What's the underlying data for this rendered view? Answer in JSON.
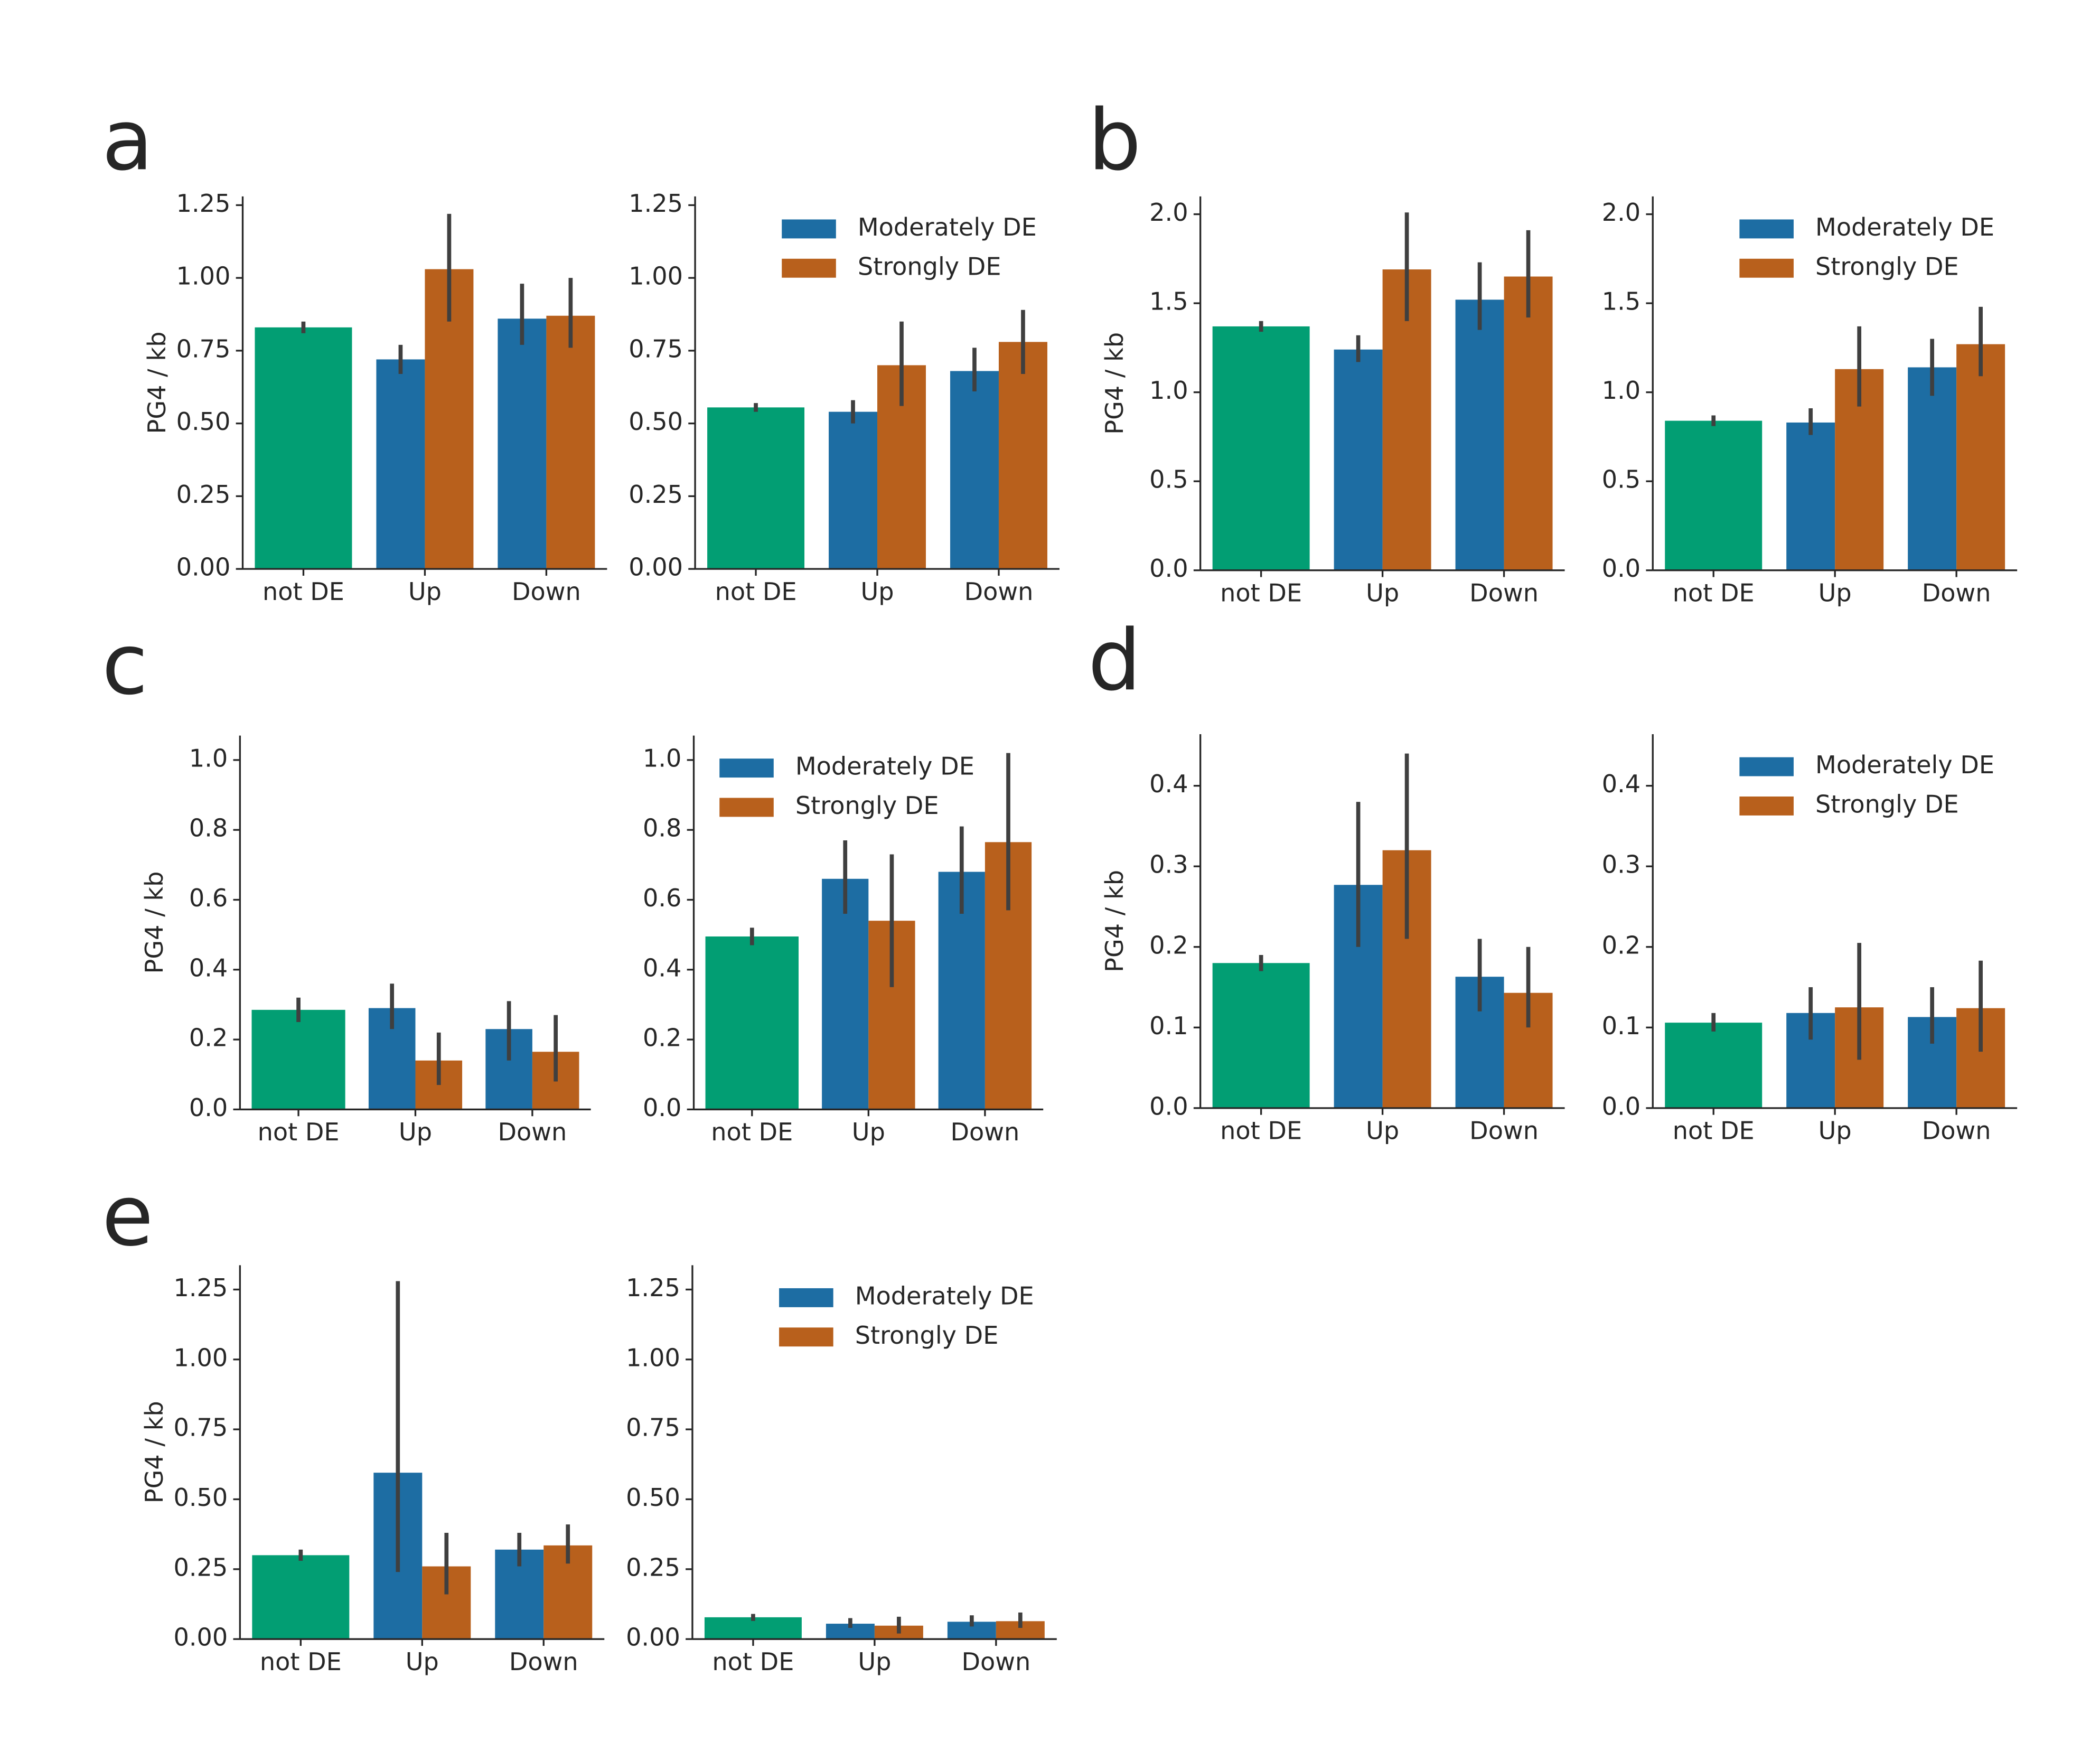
{
  "chart_data": [
    {
      "type": "bar",
      "panel": "a",
      "ylabel": "PG4 / kb",
      "legend": false,
      "categories": [
        "not DE",
        "Up",
        "Down"
      ],
      "series": [
        {
          "color": "#029e73",
          "values": [
            0.83,
            null,
            null
          ],
          "errors": [
            [
              0.81,
              0.85
            ],
            null,
            null
          ]
        },
        {
          "name": "Moderately DE",
          "color": "#1d6da3",
          "values": [
            null,
            0.72,
            0.86
          ],
          "errors": [
            null,
            [
              0.67,
              0.77
            ],
            [
              0.77,
              0.98
            ]
          ]
        },
        {
          "name": "Strongly DE",
          "color": "#b8601c",
          "values": [
            null,
            1.03,
            0.87
          ],
          "errors": [
            null,
            [
              0.85,
              1.22
            ],
            [
              0.76,
              1.0
            ]
          ]
        }
      ],
      "ylim": [
        0,
        1.28
      ],
      "yticks": [
        {
          "value": 0,
          "label": "0.00"
        },
        0.25,
        {
          "value": 0.5,
          "label": "0.50"
        },
        0.75,
        {
          "value": 1,
          "label": "1.00"
        },
        1.25
      ]
    },
    {
      "type": "bar",
      "legend": true,
      "legend_loc": "upper right",
      "categories": [
        "not DE",
        "Up",
        "Down"
      ],
      "series": [
        {
          "color": "#029e73",
          "values": [
            0.555,
            null,
            null
          ],
          "errors": [
            [
              0.54,
              0.57
            ],
            null,
            null
          ]
        },
        {
          "name": "Moderately DE",
          "color": "#1d6da3",
          "values": [
            null,
            0.54,
            0.68
          ],
          "errors": [
            null,
            [
              0.5,
              0.58
            ],
            [
              0.61,
              0.76
            ]
          ]
        },
        {
          "name": "Strongly DE",
          "color": "#b8601c",
          "values": [
            null,
            0.7,
            0.78
          ],
          "errors": [
            null,
            [
              0.56,
              0.85
            ],
            [
              0.67,
              0.89
            ]
          ]
        }
      ],
      "ylim": [
        0,
        1.28
      ],
      "yticks": [
        {
          "value": 0,
          "label": "0.00"
        },
        0.25,
        {
          "value": 0.5,
          "label": "0.50"
        },
        0.75,
        {
          "value": 1,
          "label": "1.00"
        },
        1.25
      ]
    },
    {
      "type": "bar",
      "panel": "b",
      "ylabel": "PG4 / kb",
      "legend": false,
      "categories": [
        "not DE",
        "Up",
        "Down"
      ],
      "series": [
        {
          "color": "#029e73",
          "values": [
            1.37,
            null,
            null
          ],
          "errors": [
            [
              1.34,
              1.4
            ],
            null,
            null
          ]
        },
        {
          "name": "Moderately DE",
          "color": "#1d6da3",
          "values": [
            null,
            1.24,
            1.52
          ],
          "errors": [
            null,
            [
              1.17,
              1.32
            ],
            [
              1.35,
              1.73
            ]
          ]
        },
        {
          "name": "Strongly DE",
          "color": "#b8601c",
          "values": [
            null,
            1.69,
            1.65
          ],
          "errors": [
            null,
            [
              1.4,
              2.01
            ],
            [
              1.42,
              1.91
            ]
          ]
        }
      ],
      "ylim": [
        0,
        2.1
      ],
      "yticks": [
        {
          "value": 0,
          "label": "0.0"
        },
        0.5,
        {
          "value": 1,
          "label": "1.0"
        },
        1.5,
        {
          "value": 2,
          "label": "2.0"
        }
      ]
    },
    {
      "type": "bar",
      "legend": true,
      "legend_loc": "upper right",
      "categories": [
        "not DE",
        "Up",
        "Down"
      ],
      "series": [
        {
          "color": "#029e73",
          "values": [
            0.84,
            null,
            null
          ],
          "errors": [
            [
              0.81,
              0.87
            ],
            null,
            null
          ]
        },
        {
          "name": "Moderately DE",
          "color": "#1d6da3",
          "values": [
            null,
            0.83,
            1.14
          ],
          "errors": [
            null,
            [
              0.76,
              0.91
            ],
            [
              0.98,
              1.3
            ]
          ]
        },
        {
          "name": "Strongly DE",
          "color": "#b8601c",
          "values": [
            null,
            1.13,
            1.27
          ],
          "errors": [
            null,
            [
              0.92,
              1.37
            ],
            [
              1.09,
              1.48
            ]
          ]
        }
      ],
      "ylim": [
        0,
        2.1
      ],
      "yticks": [
        {
          "value": 0,
          "label": "0.0"
        },
        0.5,
        {
          "value": 1,
          "label": "1.0"
        },
        1.5,
        {
          "value": 2,
          "label": "2.0"
        }
      ]
    },
    {
      "type": "bar",
      "panel": "c",
      "ylabel": "PG4 / kb",
      "legend": false,
      "categories": [
        "not DE",
        "Up",
        "Down"
      ],
      "series": [
        {
          "color": "#029e73",
          "values": [
            0.285,
            null,
            null
          ],
          "errors": [
            [
              0.25,
              0.32
            ],
            null,
            null
          ]
        },
        {
          "name": "Moderately DE",
          "color": "#1d6da3",
          "values": [
            null,
            0.29,
            0.23
          ],
          "errors": [
            null,
            [
              0.23,
              0.36
            ],
            [
              0.14,
              0.31
            ]
          ]
        },
        {
          "name": "Strongly DE",
          "color": "#b8601c",
          "values": [
            null,
            0.14,
            0.165
          ],
          "errors": [
            null,
            [
              0.07,
              0.22
            ],
            [
              0.08,
              0.27
            ]
          ]
        }
      ],
      "ylim": [
        0,
        1.07
      ],
      "yticks": [
        {
          "value": 0,
          "label": "0.0"
        },
        0.2,
        0.4,
        0.6,
        0.8,
        {
          "value": 1,
          "label": "1.0"
        }
      ]
    },
    {
      "type": "bar",
      "legend": true,
      "legend_loc": "upper left",
      "categories": [
        "not DE",
        "Up",
        "Down"
      ],
      "series": [
        {
          "color": "#029e73",
          "values": [
            0.495,
            null,
            null
          ],
          "errors": [
            [
              0.47,
              0.52
            ],
            null,
            null
          ]
        },
        {
          "name": "Moderately DE",
          "color": "#1d6da3",
          "values": [
            null,
            0.66,
            0.68
          ],
          "errors": [
            null,
            [
              0.56,
              0.77
            ],
            [
              0.56,
              0.81
            ]
          ]
        },
        {
          "name": "Strongly DE",
          "color": "#b8601c",
          "values": [
            null,
            0.54,
            0.765
          ],
          "errors": [
            null,
            [
              0.35,
              0.73
            ],
            [
              0.57,
              1.02
            ]
          ]
        }
      ],
      "ylim": [
        0,
        1.07
      ],
      "yticks": [
        {
          "value": 0,
          "label": "0.0"
        },
        0.2,
        0.4,
        0.6,
        0.8,
        {
          "value": 1,
          "label": "1.0"
        }
      ]
    },
    {
      "type": "bar",
      "panel": "d",
      "ylabel": "PG4 / kb",
      "legend": false,
      "categories": [
        "not DE",
        "Up",
        "Down"
      ],
      "series": [
        {
          "color": "#029e73",
          "values": [
            0.18,
            null,
            null
          ],
          "errors": [
            [
              0.17,
              0.19
            ],
            null,
            null
          ]
        },
        {
          "name": "Moderately DE",
          "color": "#1d6da3",
          "values": [
            null,
            0.277,
            0.163
          ],
          "errors": [
            null,
            [
              0.2,
              0.38
            ],
            [
              0.12,
              0.21
            ]
          ]
        },
        {
          "name": "Strongly DE",
          "color": "#b8601c",
          "values": [
            null,
            0.32,
            0.143
          ],
          "errors": [
            null,
            [
              0.21,
              0.44
            ],
            [
              0.1,
              0.2
            ]
          ]
        }
      ],
      "ylim": [
        0,
        0.464
      ],
      "yticks": [
        {
          "value": 0,
          "label": "0.0"
        },
        0.1,
        0.2,
        0.3,
        0.4
      ]
    },
    {
      "type": "bar",
      "legend": true,
      "legend_loc": "upper right",
      "categories": [
        "not DE",
        "Up",
        "Down"
      ],
      "series": [
        {
          "color": "#029e73",
          "values": [
            0.106,
            null,
            null
          ],
          "errors": [
            [
              0.095,
              0.118
            ],
            null,
            null
          ]
        },
        {
          "name": "Moderately DE",
          "color": "#1d6da3",
          "values": [
            null,
            0.118,
            0.113
          ],
          "errors": [
            null,
            [
              0.085,
              0.15
            ],
            [
              0.08,
              0.15
            ]
          ]
        },
        {
          "name": "Strongly DE",
          "color": "#b8601c",
          "values": [
            null,
            0.125,
            0.124
          ],
          "errors": [
            null,
            [
              0.06,
              0.205
            ],
            [
              0.07,
              0.183
            ]
          ]
        }
      ],
      "ylim": [
        0,
        0.464
      ],
      "yticks": [
        {
          "value": 0,
          "label": "0.0"
        },
        0.1,
        0.2,
        0.3,
        0.4
      ]
    },
    {
      "type": "bar",
      "panel": "e",
      "ylabel": "PG4 / kb",
      "legend": false,
      "categories": [
        "not DE",
        "Up",
        "Down"
      ],
      "series": [
        {
          "color": "#029e73",
          "values": [
            0.3,
            null,
            null
          ],
          "errors": [
            [
              0.28,
              0.32
            ],
            null,
            null
          ]
        },
        {
          "name": "Moderately DE",
          "color": "#1d6da3",
          "values": [
            null,
            0.595,
            0.32
          ],
          "errors": [
            null,
            [
              0.24,
              1.28
            ],
            [
              0.26,
              0.38
            ]
          ]
        },
        {
          "name": "Strongly DE",
          "color": "#b8601c",
          "values": [
            null,
            0.26,
            0.335
          ],
          "errors": [
            null,
            [
              0.16,
              0.38
            ],
            [
              0.27,
              0.41
            ]
          ]
        }
      ],
      "ylim": [
        0,
        1.337
      ],
      "yticks": [
        {
          "value": 0,
          "label": "0.00"
        },
        0.25,
        {
          "value": 0.5,
          "label": "0.50"
        },
        0.75,
        {
          "value": 1,
          "label": "1.00"
        },
        1.25
      ]
    },
    {
      "type": "bar",
      "legend": true,
      "legend_loc": "upper right",
      "categories": [
        "not DE",
        "Up",
        "Down"
      ],
      "series": [
        {
          "color": "#029e73",
          "values": [
            0.078,
            null,
            null
          ],
          "errors": [
            [
              0.065,
              0.09
            ],
            null,
            null
          ]
        },
        {
          "name": "Moderately DE",
          "color": "#1d6da3",
          "values": [
            null,
            0.055,
            0.062
          ],
          "errors": [
            null,
            [
              0.04,
              0.075
            ],
            [
              0.045,
              0.085
            ]
          ]
        },
        {
          "name": "Strongly DE",
          "color": "#b8601c",
          "values": [
            null,
            0.048,
            0.064
          ],
          "errors": [
            null,
            [
              0.02,
              0.08
            ],
            [
              0.04,
              0.095
            ]
          ]
        }
      ],
      "ylim": [
        0,
        1.337
      ],
      "yticks": [
        {
          "value": 0,
          "label": "0.00"
        },
        0.25,
        {
          "value": 0.5,
          "label": "0.50"
        },
        0.75,
        {
          "value": 1,
          "label": "1.00"
        },
        1.25
      ]
    }
  ]
}
